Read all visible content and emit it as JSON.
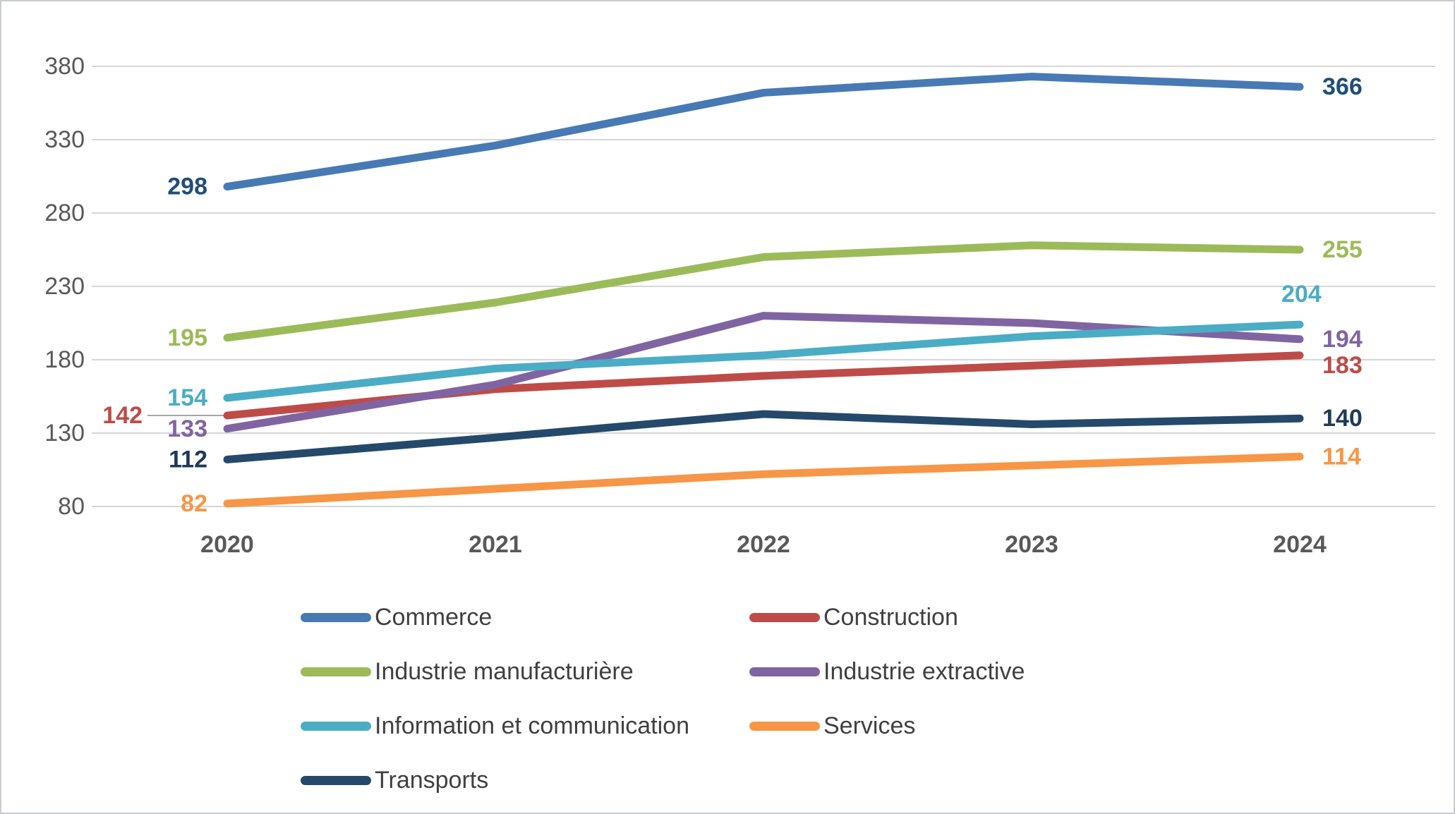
{
  "chart_data": {
    "type": "line",
    "title": "",
    "x_labels": [
      "2020",
      "2021",
      "2022",
      "2023",
      "2024"
    ],
    "yticks": [
      80,
      130,
      180,
      230,
      280,
      330,
      380
    ],
    "ylim": [
      80,
      380
    ],
    "grid": true,
    "legend_position": "bottom",
    "axis_color": "#595959",
    "gridline_color": "#d6d6d6",
    "leader_line_color": "#a6a6a6",
    "series": [
      {
        "name": "Commerce",
        "color": "#4779B5",
        "label_color": "#1F4E79",
        "values": [
          298,
          326,
          362,
          373,
          366
        ],
        "first_label": "298",
        "last_label": "366"
      },
      {
        "name": "Construction",
        "color": "#BE4B48",
        "label_color": "#BE4B48",
        "values": [
          142,
          160,
          169,
          176,
          183
        ],
        "first_label": "142",
        "last_label": "183"
      },
      {
        "name": "Industrie manufacturière",
        "color": "#9BBB59",
        "label_color": "#9BBB59",
        "values": [
          195,
          219,
          250,
          258,
          255
        ],
        "first_label": "195",
        "last_label": "255"
      },
      {
        "name": "Industrie extractive",
        "color": "#8064A2",
        "label_color": "#8064A2",
        "values": [
          133,
          163,
          210,
          205,
          194
        ],
        "first_label": "133",
        "last_label": "194"
      },
      {
        "name": "Information et communication",
        "color": "#4BACC6",
        "label_color": "#4BACC6",
        "values": [
          154,
          174,
          183,
          196,
          204
        ],
        "first_label": "154",
        "last_label": "204"
      },
      {
        "name": "Services",
        "color": "#F79646",
        "label_color": "#F79646",
        "values": [
          82,
          92,
          102,
          108,
          114
        ],
        "first_label": "82",
        "last_label": "114"
      },
      {
        "name": "Transports",
        "color": "#24496B",
        "label_color": "#1F3A57",
        "values": [
          112,
          127,
          143,
          136,
          140
        ],
        "first_label": "112",
        "last_label": "140"
      }
    ]
  }
}
